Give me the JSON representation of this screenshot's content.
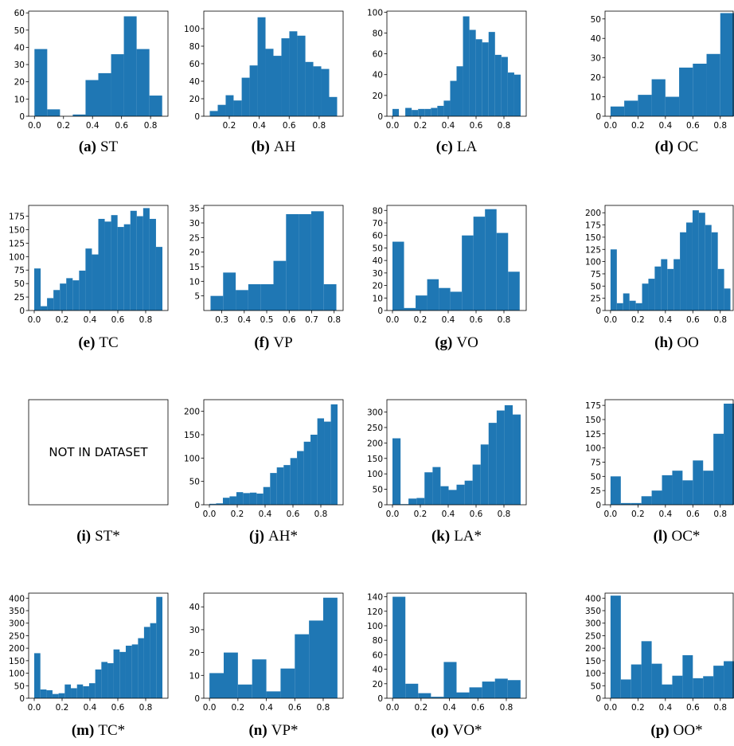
{
  "chart_data": [
    {
      "type": "histogram",
      "label": "(a)",
      "title": "ST",
      "color": "#1f77b4",
      "bins": [
        0,
        0.088,
        0.176,
        0.264,
        0.352,
        0.44,
        0.528,
        0.616,
        0.704,
        0.792,
        0.88
      ],
      "values": [
        39,
        4,
        0,
        1,
        21,
        25,
        36,
        58,
        39,
        12
      ],
      "xlim": [
        -0.04,
        0.92
      ],
      "ylim": [
        0,
        61
      ],
      "xticks": [
        {
          "value": 0,
          "label": "0.0"
        },
        0.2,
        0.4,
        0.6,
        0.8
      ],
      "yticks": [
        0,
        10,
        20,
        30,
        40,
        50,
        60
      ]
    },
    {
      "type": "histogram",
      "label": "(b)",
      "title": "AH",
      "color": "#1f77b4",
      "bins": [
        0.07,
        0.123,
        0.176,
        0.229,
        0.283,
        0.336,
        0.389,
        0.442,
        0.495,
        0.548,
        0.601,
        0.654,
        0.708,
        0.761,
        0.814,
        0.867,
        0.92
      ],
      "values": [
        6,
        13,
        24,
        18,
        44,
        58,
        113,
        77,
        69,
        89,
        97,
        92,
        62,
        57,
        54,
        22
      ],
      "xlim": [
        0.03,
        0.96
      ],
      "ylim": [
        0,
        120
      ],
      "xticks": [
        0.2,
        0.4,
        0.6,
        0.8
      ],
      "yticks": [
        0,
        20,
        40,
        60,
        80,
        100
      ]
    },
    {
      "type": "histogram",
      "label": "(c)",
      "title": "LA",
      "color": "#1f77b4",
      "bins": [
        0,
        0.046,
        0.092,
        0.138,
        0.184,
        0.23,
        0.276,
        0.322,
        0.368,
        0.414,
        0.46,
        0.506,
        0.552,
        0.598,
        0.644,
        0.69,
        0.736,
        0.782,
        0.828,
        0.874,
        0.92
      ],
      "values": [
        7,
        0,
        8,
        6,
        7,
        7,
        8,
        10,
        15,
        34,
        48,
        96,
        83,
        74,
        71,
        81,
        59,
        57,
        42,
        40
      ],
      "xlim": [
        -0.04,
        0.96
      ],
      "ylim": [
        0,
        101
      ],
      "xticks": [
        {
          "value": 0,
          "label": "0.0"
        },
        0.2,
        0.4,
        0.6,
        0.8
      ],
      "yticks": [
        0,
        20,
        40,
        60,
        80,
        100
      ]
    },
    {
      "type": "histogram",
      "label": "(d)",
      "title": "OC",
      "color": "#1f77b4",
      "bins": [
        0,
        0.1,
        0.2,
        0.3,
        0.4,
        0.5,
        0.6,
        0.7,
        0.8,
        0.9
      ],
      "values": [
        5,
        8,
        11,
        19,
        10,
        25,
        27,
        32,
        53
      ],
      "xlim": [
        -0.04,
        0.9
      ],
      "ylim": [
        0,
        54
      ],
      "xticks": [
        {
          "value": 0,
          "label": "0.0"
        },
        0.2,
        0.4,
        0.6,
        0.8
      ],
      "yticks": [
        0,
        10,
        20,
        30,
        40,
        50
      ]
    },
    {
      "type": "histogram",
      "label": "(e)",
      "title": "TC",
      "color": "#1f77b4",
      "bins": [
        0,
        0.046,
        0.092,
        0.138,
        0.184,
        0.23,
        0.276,
        0.322,
        0.368,
        0.414,
        0.46,
        0.506,
        0.552,
        0.598,
        0.644,
        0.69,
        0.736,
        0.782,
        0.828,
        0.874,
        0.92
      ],
      "values": [
        78,
        8,
        23,
        38,
        50,
        60,
        56,
        74,
        115,
        104,
        170,
        165,
        177,
        155,
        160,
        185,
        175,
        190,
        170,
        118
      ],
      "xlim": [
        -0.04,
        0.96
      ],
      "ylim": [
        0,
        195
      ],
      "xticks": [
        {
          "value": 0,
          "label": "0.0"
        },
        0.2,
        0.4,
        0.6,
        0.8
      ],
      "yticks": [
        0,
        25,
        50,
        75,
        100,
        125,
        150,
        175
      ]
    },
    {
      "type": "histogram",
      "label": "(f)",
      "title": "VP",
      "color": "#1f77b4",
      "bins": [
        0.25,
        0.306,
        0.362,
        0.418,
        0.474,
        0.53,
        0.586,
        0.642,
        0.698,
        0.754,
        0.81
      ],
      "values": [
        5,
        13,
        7,
        9,
        9,
        17,
        33,
        33,
        34,
        9
      ],
      "xlim": [
        0.22,
        0.84
      ],
      "ylim": [
        0,
        36
      ],
      "xticks": [
        0.3,
        0.4,
        0.5,
        0.6,
        0.7,
        0.8
      ],
      "yticks": [
        5,
        10,
        15,
        20,
        25,
        30,
        35
      ]
    },
    {
      "type": "histogram",
      "label": "(g)",
      "title": "VO",
      "color": "#1f77b4",
      "bins": [
        0,
        0.083,
        0.166,
        0.249,
        0.332,
        0.415,
        0.498,
        0.581,
        0.664,
        0.747,
        0.83,
        0.913
      ],
      "values": [
        55,
        2,
        12,
        25,
        18,
        15,
        60,
        75,
        81,
        62,
        31
      ],
      "xlim": [
        -0.04,
        0.96
      ],
      "ylim": [
        0,
        84
      ],
      "xticks": [
        {
          "value": 0,
          "label": "0.0"
        },
        0.2,
        0.4,
        0.6,
        0.8
      ],
      "yticks": [
        0,
        10,
        20,
        30,
        40,
        50,
        60,
        70,
        80
      ]
    },
    {
      "type": "histogram",
      "label": "(h)",
      "title": "OO",
      "color": "#1f77b4",
      "bins": [
        0,
        0.046,
        0.092,
        0.138,
        0.184,
        0.23,
        0.276,
        0.322,
        0.368,
        0.414,
        0.46,
        0.506,
        0.552,
        0.598,
        0.644,
        0.69,
        0.736,
        0.782,
        0.828,
        0.874
      ],
      "values": [
        125,
        15,
        35,
        20,
        15,
        55,
        65,
        90,
        105,
        85,
        105,
        160,
        180,
        205,
        200,
        175,
        160,
        85,
        45
      ],
      "xlim": [
        -0.04,
        0.9
      ],
      "ylim": [
        0,
        215
      ],
      "xticks": [
        {
          "value": 0,
          "label": "0.0"
        },
        0.2,
        0.4,
        0.6,
        0.8
      ],
      "yticks": [
        0,
        25,
        50,
        75,
        100,
        125,
        150,
        175,
        200
      ]
    },
    {
      "type": "empty",
      "label": "(i)",
      "title": "ST*",
      "note": "NOT IN DATASET"
    },
    {
      "type": "histogram",
      "label": "(j)",
      "title": "AH*",
      "color": "#1f77b4",
      "bins": [
        0,
        0.048,
        0.097,
        0.145,
        0.194,
        0.242,
        0.291,
        0.339,
        0.387,
        0.436,
        0.484,
        0.533,
        0.581,
        0.629,
        0.678,
        0.726,
        0.775,
        0.823,
        0.872,
        0.92
      ],
      "values": [
        2,
        3,
        15,
        18,
        27,
        25,
        26,
        24,
        38,
        68,
        80,
        85,
        100,
        115,
        135,
        150,
        185,
        178,
        215
      ],
      "xlim": [
        -0.04,
        0.96
      ],
      "ylim": [
        0,
        225
      ],
      "xticks": [
        {
          "value": 0,
          "label": "0.0"
        },
        0.2,
        0.4,
        0.6,
        0.8
      ],
      "yticks": [
        0,
        50,
        100,
        150,
        200
      ]
    },
    {
      "type": "histogram",
      "label": "(k)",
      "title": "LA*",
      "color": "#1f77b4",
      "bins": [
        0,
        0.058,
        0.115,
        0.173,
        0.23,
        0.288,
        0.345,
        0.403,
        0.46,
        0.518,
        0.575,
        0.633,
        0.69,
        0.748,
        0.805,
        0.863,
        0.92
      ],
      "values": [
        215,
        2,
        20,
        22,
        105,
        122,
        60,
        48,
        65,
        78,
        130,
        195,
        265,
        305,
        322,
        292
      ],
      "xlim": [
        -0.04,
        0.96
      ],
      "ylim": [
        0,
        340
      ],
      "xticks": [
        {
          "value": 0,
          "label": "0.0"
        },
        0.2,
        0.4,
        0.6,
        0.8
      ],
      "yticks": [
        0,
        50,
        100,
        150,
        200,
        250,
        300
      ]
    },
    {
      "type": "histogram",
      "label": "(l)",
      "title": "OC*",
      "color": "#1f77b4",
      "bins": [
        0,
        0.075,
        0.15,
        0.225,
        0.3,
        0.375,
        0.45,
        0.525,
        0.6,
        0.675,
        0.75,
        0.825,
        0.9
      ],
      "values": [
        50,
        3,
        3,
        15,
        25,
        52,
        60,
        43,
        78,
        60,
        125,
        178
      ],
      "xlim": [
        -0.04,
        0.9
      ],
      "ylim": [
        0,
        185
      ],
      "xticks": [
        {
          "value": 0,
          "label": "0.0"
        },
        0.2,
        0.4,
        0.6,
        0.8
      ],
      "yticks": [
        0,
        25,
        50,
        75,
        100,
        125,
        150,
        175
      ]
    },
    {
      "type": "histogram",
      "label": "(m)",
      "title": "TC*",
      "color": "#1f77b4",
      "bins": [
        0,
        0.044,
        0.088,
        0.131,
        0.175,
        0.219,
        0.263,
        0.307,
        0.35,
        0.394,
        0.438,
        0.482,
        0.526,
        0.569,
        0.613,
        0.657,
        0.701,
        0.745,
        0.788,
        0.832,
        0.876,
        0.92
      ],
      "values": [
        180,
        35,
        32,
        17,
        20,
        55,
        40,
        55,
        48,
        60,
        115,
        145,
        140,
        195,
        185,
        210,
        215,
        240,
        285,
        300,
        405
      ],
      "xlim": [
        -0.04,
        0.96
      ],
      "ylim": [
        0,
        420
      ],
      "xticks": [
        {
          "value": 0,
          "label": "0.0"
        },
        0.2,
        0.4,
        0.6,
        0.8
      ],
      "yticks": [
        0,
        50,
        100,
        150,
        200,
        250,
        300,
        350,
        400
      ]
    },
    {
      "type": "histogram",
      "label": "(n)",
      "title": "VP*",
      "color": "#1f77b4",
      "bins": [
        0,
        0.1,
        0.2,
        0.3,
        0.4,
        0.5,
        0.6,
        0.7,
        0.8,
        0.9
      ],
      "values": [
        11,
        20,
        6,
        17,
        3,
        13,
        28,
        34,
        44
      ],
      "xlim": [
        -0.04,
        0.94
      ],
      "ylim": [
        0,
        46
      ],
      "xticks": [
        {
          "value": 0,
          "label": "0.0"
        },
        0.2,
        0.4,
        0.6,
        0.8
      ],
      "yticks": [
        0,
        10,
        20,
        30,
        40
      ]
    },
    {
      "type": "histogram",
      "label": "(o)",
      "title": "VO*",
      "color": "#1f77b4",
      "bins": [
        0,
        0.09,
        0.18,
        0.27,
        0.36,
        0.45,
        0.54,
        0.63,
        0.72,
        0.81,
        0.9
      ],
      "values": [
        140,
        20,
        7,
        2,
        50,
        8,
        15,
        23,
        27,
        25
      ],
      "xlim": [
        -0.04,
        0.94
      ],
      "ylim": [
        0,
        145
      ],
      "xticks": [
        {
          "value": 0,
          "label": "0.0"
        },
        0.2,
        0.4,
        0.6,
        0.8
      ],
      "yticks": [
        0,
        20,
        40,
        60,
        80,
        100,
        120,
        140
      ]
    },
    {
      "type": "histogram",
      "label": "(p)",
      "title": "OO*",
      "color": "#1f77b4",
      "bins": [
        0,
        0.075,
        0.15,
        0.225,
        0.3,
        0.375,
        0.45,
        0.525,
        0.6,
        0.675,
        0.75,
        0.825,
        0.9
      ],
      "values": [
        410,
        75,
        135,
        228,
        138,
        55,
        90,
        172,
        80,
        88,
        130,
        148
      ],
      "xlim": [
        -0.04,
        0.9
      ],
      "ylim": [
        0,
        420
      ],
      "xticks": [
        {
          "value": 0,
          "label": "0.0"
        },
        0.2,
        0.4,
        0.6,
        0.8
      ],
      "yticks": [
        0,
        50,
        100,
        150,
        200,
        250,
        300,
        350,
        400
      ]
    }
  ]
}
